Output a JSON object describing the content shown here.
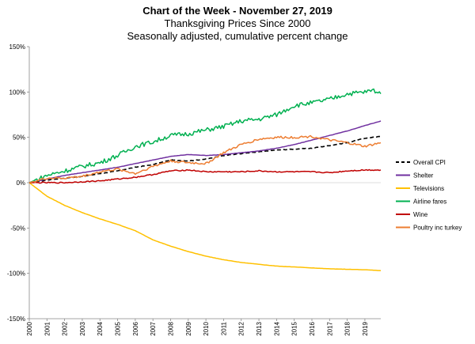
{
  "chart_data": {
    "type": "line",
    "title": "Chart of the Week - November 27, 2019",
    "subtitle": "Thanksgiving Prices Since 2000",
    "subtitle2": "Seasonally adjusted, cumulative percent change",
    "xlabel": "",
    "ylabel": "",
    "ylim": [
      -150,
      150
    ],
    "xlim": [
      2000,
      2019.9
    ],
    "yticks": [
      -150,
      -100,
      -50,
      0,
      50,
      100,
      150
    ],
    "ytick_labels": [
      "-150%",
      "-100%",
      "-50%",
      "0%",
      "50%",
      "100%",
      "150%"
    ],
    "xticks": [
      2000,
      2001,
      2002,
      2003,
      2004,
      2005,
      2006,
      2007,
      2008,
      2009,
      2010,
      2011,
      2012,
      2013,
      2014,
      2015,
      2016,
      2017,
      2018,
      2019
    ],
    "xtick_labels": [
      "2000",
      "2001",
      "2002",
      "2003",
      "2004",
      "2005",
      "2006",
      "2007",
      "2008",
      "2009",
      "2010",
      "2011",
      "2012",
      "2013",
      "2014",
      "2015",
      "2016",
      "2017",
      "2018",
      "2019"
    ],
    "legend_position": "right",
    "series": [
      {
        "name": "Overall CPI",
        "color": "#000000",
        "dashed": true,
        "x": [
          2000,
          2001,
          2002,
          2003,
          2004,
          2005,
          2006,
          2007,
          2008,
          2009,
          2010,
          2011,
          2012,
          2013,
          2014,
          2015,
          2016,
          2017,
          2018,
          2019,
          2019.9
        ],
        "y": [
          0,
          3,
          5,
          7,
          10,
          13,
          17,
          20,
          25,
          24,
          26,
          30,
          32,
          34,
          36,
          37,
          38,
          41,
          44,
          49,
          51
        ]
      },
      {
        "name": "Shelter",
        "color": "#7030a0",
        "dashed": false,
        "x": [
          2000,
          2001,
          2002,
          2003,
          2004,
          2005,
          2006,
          2007,
          2008,
          2009,
          2010,
          2011,
          2012,
          2013,
          2014,
          2015,
          2016,
          2017,
          2018,
          2019,
          2019.9
        ],
        "y": [
          0,
          4,
          8,
          11,
          14,
          17,
          21,
          25,
          29,
          31,
          30,
          31,
          33,
          35,
          38,
          42,
          47,
          52,
          57,
          63,
          68
        ]
      },
      {
        "name": "Televisions",
        "color": "#ffc000",
        "dashed": false,
        "x": [
          2000,
          2001,
          2002,
          2003,
          2004,
          2005,
          2006,
          2007,
          2008,
          2009,
          2010,
          2011,
          2012,
          2013,
          2014,
          2015,
          2016,
          2017,
          2018,
          2019,
          2019.9
        ],
        "y": [
          0,
          -15,
          -25,
          -33,
          -40,
          -46,
          -53,
          -63,
          -70,
          -76,
          -81,
          -85,
          -88,
          -90,
          -92,
          -93,
          -94,
          -95,
          -95.5,
          -96,
          -97
        ]
      },
      {
        "name": "Airline fares",
        "color": "#00b050",
        "dashed": false,
        "x": [
          2000,
          2001,
          2002,
          2003,
          2004,
          2005,
          2006,
          2007,
          2008,
          2009,
          2010,
          2011,
          2012,
          2013,
          2014,
          2015,
          2016,
          2017,
          2018,
          2019,
          2019.5,
          2019.9
        ],
        "y": [
          0,
          8,
          13,
          18,
          22,
          30,
          40,
          45,
          52,
          54,
          58,
          62,
          68,
          70,
          75,
          85,
          88,
          92,
          98,
          100,
          102,
          98
        ]
      },
      {
        "name": "Wine",
        "color": "#c00000",
        "dashed": false,
        "x": [
          2000,
          2001,
          2002,
          2003,
          2004,
          2005,
          2006,
          2007,
          2008,
          2009,
          2010,
          2011,
          2012,
          2013,
          2014,
          2015,
          2016,
          2017,
          2018,
          2019,
          2019.9
        ],
        "y": [
          0,
          0,
          0,
          1,
          2,
          4,
          6,
          9,
          13,
          14,
          12,
          12,
          12,
          13,
          12,
          12,
          12,
          11,
          13,
          14,
          14
        ]
      },
      {
        "name": "Poultry inc turkey",
        "color": "#ed7d31",
        "dashed": false,
        "x": [
          2000,
          2001,
          2002,
          2003,
          2004,
          2005,
          2006,
          2007,
          2008,
          2009,
          2010,
          2011,
          2012,
          2013,
          2014,
          2015,
          2016,
          2017,
          2018,
          2019,
          2019.9
        ],
        "y": [
          0,
          5,
          5,
          7,
          12,
          15,
          10,
          18,
          24,
          22,
          21,
          33,
          42,
          48,
          50,
          50,
          51,
          47,
          44,
          40,
          44
        ]
      }
    ]
  }
}
